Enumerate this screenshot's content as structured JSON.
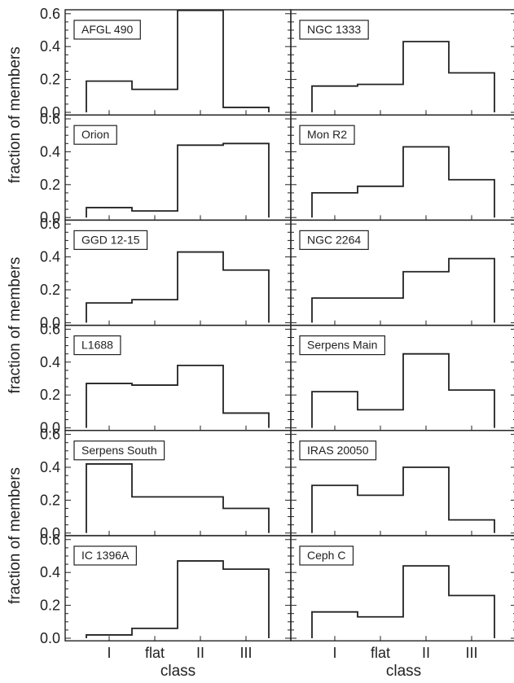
{
  "chart_data": {
    "type": "bar",
    "layout": "grid-6-rows-2-cols",
    "categories": [
      "I",
      "flat",
      "II",
      "III"
    ],
    "xlabel": "class",
    "ylabel": "fraction of members",
    "ylim": [
      0,
      0.76
    ],
    "yticks": [
      "0.0",
      "0.2",
      "0.4",
      "0.6"
    ],
    "style": "step-histogram",
    "panels": [
      {
        "name": "AFGL 490",
        "values": [
          0.19,
          0.14,
          0.62,
          0.03
        ]
      },
      {
        "name": "NGC 1333",
        "values": [
          0.16,
          0.17,
          0.43,
          0.24
        ]
      },
      {
        "name": "Orion",
        "values": [
          0.06,
          0.04,
          0.44,
          0.45
        ]
      },
      {
        "name": "Mon R2",
        "values": [
          0.15,
          0.19,
          0.43,
          0.23
        ]
      },
      {
        "name": "GGD 12-15",
        "values": [
          0.12,
          0.14,
          0.43,
          0.32
        ]
      },
      {
        "name": "NGC 2264",
        "values": [
          0.15,
          0.15,
          0.31,
          0.39
        ]
      },
      {
        "name": "L1688",
        "values": [
          0.27,
          0.26,
          0.38,
          0.09
        ]
      },
      {
        "name": "Serpens Main",
        "values": [
          0.22,
          0.11,
          0.45,
          0.23
        ]
      },
      {
        "name": "Serpens South",
        "values": [
          0.42,
          0.22,
          0.22,
          0.15
        ]
      },
      {
        "name": "IRAS 20050",
        "values": [
          0.29,
          0.23,
          0.4,
          0.08
        ]
      },
      {
        "name": "IC 1396A",
        "values": [
          0.02,
          0.06,
          0.47,
          0.42
        ]
      },
      {
        "name": "Ceph C",
        "values": [
          0.16,
          0.13,
          0.44,
          0.26
        ]
      }
    ]
  }
}
